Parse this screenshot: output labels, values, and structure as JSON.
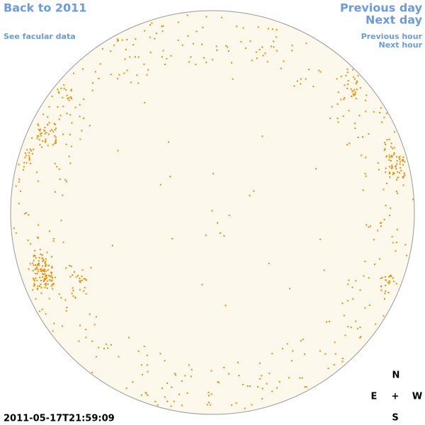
{
  "header": {
    "back": "Back to 2011",
    "previous_day": "Previous day",
    "next_day": "Next day",
    "facular": "See facular data",
    "previous_hour": "Previous hour",
    "next_hour": "Next hour"
  },
  "timestamp": "2011-05-17T21:59:09",
  "compass": {
    "north": "N",
    "east": "E",
    "center": "+",
    "west": "W",
    "south": "S"
  }
}
